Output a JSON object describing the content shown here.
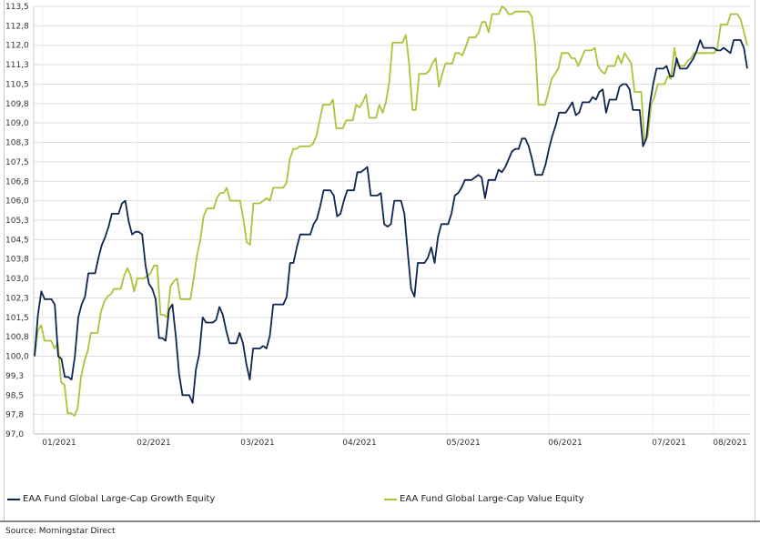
{
  "chart_data": {
    "type": "line",
    "y_ticks": [
      "113,5",
      "112,8",
      "112,0",
      "111,3",
      "110,5",
      "109,8",
      "109,0",
      "108,3",
      "107,5",
      "106,8",
      "106,0",
      "105,3",
      "104,5",
      "103,8",
      "103,0",
      "102,3",
      "101,5",
      "100,8",
      "100,0",
      "99,3",
      "98,5",
      "97,8",
      "97,0"
    ],
    "ylim": [
      97.0,
      113.5
    ],
    "x_ticks": [
      "01/2021",
      "02/2021",
      "03/2021",
      "04/2021",
      "05/2021",
      "06/2021",
      "07/2021",
      "08/2021"
    ],
    "grid": true,
    "legend_position": "bottom",
    "series": [
      {
        "name": "EAA Fund Global Large-Cap Growth Equity",
        "color": "#0e2650",
        "values": [
          100.0,
          101.6,
          102.5,
          102.2,
          102.2,
          102.2,
          102.0,
          100.0,
          99.9,
          99.2,
          99.2,
          99.1,
          100.0,
          101.5,
          102.0,
          102.3,
          103.2,
          103.2,
          103.2,
          103.8,
          104.3,
          104.6,
          105.0,
          105.5,
          105.5,
          105.5,
          105.9,
          106.0,
          105.2,
          104.7,
          104.8,
          104.8,
          104.7,
          103.5,
          102.8,
          102.6,
          102.2,
          100.7,
          100.7,
          100.6,
          101.8,
          102.0,
          100.8,
          99.3,
          98.5,
          98.5,
          98.5,
          98.2,
          99.5,
          100.1,
          101.5,
          101.3,
          101.3,
          101.3,
          101.4,
          101.9,
          101.6,
          101.0,
          100.5,
          100.5,
          100.5,
          100.9,
          100.5,
          99.7,
          99.1,
          100.3,
          100.3,
          100.3,
          100.4,
          100.3,
          100.8,
          102.0,
          102.0,
          102.0,
          102.0,
          102.3,
          103.6,
          103.6,
          104.2,
          104.7,
          104.7,
          104.7,
          104.7,
          105.1,
          105.3,
          105.8,
          106.4,
          106.4,
          106.4,
          106.2,
          105.4,
          105.5,
          106.0,
          106.4,
          106.4,
          106.4,
          107.1,
          107.1,
          107.2,
          107.3,
          106.2,
          106.2,
          106.2,
          106.3,
          105.1,
          105.0,
          105.1,
          106.0,
          106.0,
          106.0,
          105.5,
          104.0,
          102.6,
          102.3,
          103.6,
          103.6,
          103.6,
          103.8,
          104.2,
          103.6,
          104.6,
          105.1,
          105.1,
          105.1,
          105.5,
          106.2,
          106.3,
          106.5,
          106.8,
          106.8,
          106.8,
          106.9,
          107.0,
          106.9,
          106.1,
          106.8,
          106.8,
          106.8,
          107.2,
          107.1,
          107.3,
          107.6,
          107.9,
          108.0,
          108.0,
          108.4,
          108.4,
          108.1,
          107.6,
          107.0,
          107.0,
          107.0,
          107.4,
          108.0,
          108.5,
          108.9,
          109.4,
          109.4,
          109.4,
          109.6,
          109.8,
          109.3,
          109.4,
          109.8,
          109.8,
          109.8,
          110.0,
          109.9,
          110.2,
          110.3,
          109.4,
          109.9,
          109.9,
          109.9,
          110.4,
          110.5,
          110.5,
          110.3,
          109.5,
          109.5,
          109.5,
          108.1,
          108.4,
          109.7,
          110.5,
          111.1,
          111.1,
          111.1,
          111.2,
          110.8,
          110.8,
          111.5,
          111.1,
          111.1,
          111.1,
          111.3,
          111.5,
          111.8,
          112.2,
          111.9,
          111.9,
          111.9,
          111.9,
          111.8,
          111.8,
          111.9,
          111.8,
          111.7,
          112.2,
          112.2,
          112.2,
          111.9,
          111.1
        ]
      },
      {
        "name": "EAA Fund Global Large-Cap Value Equity",
        "color": "#a9c43a",
        "values": [
          100.0,
          101.0,
          101.2,
          100.6,
          100.6,
          100.6,
          100.3,
          100.5,
          99.0,
          98.9,
          97.8,
          97.8,
          97.7,
          98.0,
          99.2,
          99.8,
          100.2,
          100.9,
          100.9,
          100.9,
          101.7,
          102.1,
          102.3,
          102.4,
          102.6,
          102.6,
          102.6,
          103.1,
          103.4,
          103.1,
          102.5,
          103.0,
          103.0,
          103.0,
          103.1,
          103.2,
          103.5,
          103.5,
          101.6,
          101.6,
          101.5,
          102.7,
          102.9,
          103.0,
          102.2,
          102.2,
          102.2,
          102.2,
          103.0,
          103.9,
          104.5,
          105.4,
          105.7,
          105.7,
          105.7,
          106.1,
          106.3,
          106.3,
          106.5,
          106.0,
          106.0,
          106.0,
          106.0,
          105.3,
          104.4,
          104.3,
          105.9,
          105.9,
          105.9,
          106.0,
          106.1,
          106.0,
          106.5,
          106.5,
          106.5,
          106.5,
          106.7,
          107.6,
          108.0,
          108.0,
          108.1,
          108.1,
          108.1,
          108.1,
          108.2,
          108.5,
          109.1,
          109.7,
          109.7,
          109.7,
          109.9,
          108.8,
          108.8,
          108.8,
          109.1,
          109.1,
          109.1,
          109.7,
          109.6,
          109.8,
          110.1,
          109.2,
          109.2,
          109.2,
          109.7,
          109.4,
          109.8,
          110.6,
          112.1,
          112.1,
          112.1,
          112.1,
          112.4,
          111.3,
          109.5,
          109.5,
          110.9,
          110.9,
          110.9,
          111.0,
          111.3,
          111.5,
          110.4,
          110.9,
          111.3,
          111.3,
          111.3,
          111.7,
          111.7,
          111.6,
          111.9,
          112.3,
          112.3,
          112.3,
          112.5,
          112.9,
          112.9,
          112.5,
          113.2,
          113.2,
          113.2,
          113.5,
          113.4,
          113.2,
          113.2,
          113.3,
          113.3,
          113.3,
          113.3,
          113.3,
          113.1,
          112.0,
          109.7,
          109.7,
          109.7,
          110.2,
          110.7,
          110.9,
          111.1,
          111.7,
          111.7,
          111.7,
          111.5,
          111.5,
          111.2,
          111.5,
          111.8,
          111.8,
          111.8,
          111.9,
          111.2,
          111.0,
          110.9,
          111.2,
          111.2,
          111.2,
          111.6,
          111.3,
          111.7,
          111.5,
          111.3,
          110.2,
          110.2,
          110.2,
          108.3,
          108.5,
          109.7,
          110.0,
          110.5,
          110.5,
          110.5,
          110.8,
          110.7,
          111.9,
          111.2,
          111.2,
          111.2,
          111.4,
          111.5,
          111.7,
          111.7,
          111.7,
          111.7,
          111.7,
          111.7,
          111.7,
          111.9,
          112.8,
          112.8,
          112.8,
          113.2,
          113.2,
          113.2,
          113.0,
          112.5,
          112.0
        ]
      }
    ]
  },
  "legend": {
    "growth_label": "EAA Fund Global Large-Cap Growth Equity",
    "value_label": "EAA Fund Global Large-Cap Value Equity"
  },
  "source": {
    "text": "Source: Morningstar Direct"
  }
}
